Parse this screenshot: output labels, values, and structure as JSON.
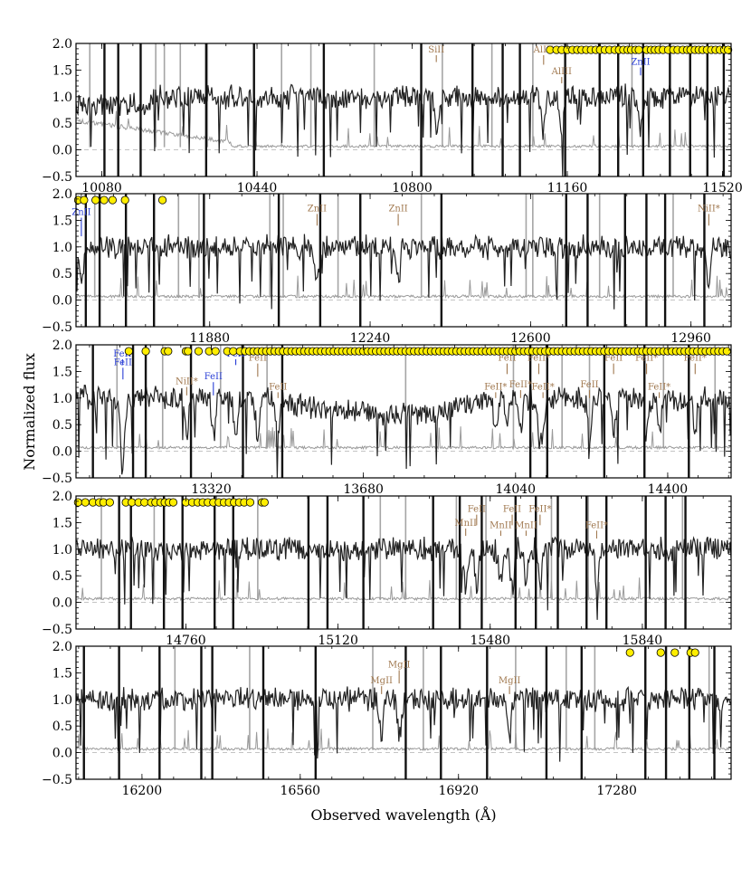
{
  "colors": {
    "flux": "#222222",
    "error": "#9a9a9a",
    "sky": "#a5a5a5",
    "telluric": "#111111",
    "low_ion": "#a0784f",
    "high_ion": "#2a3fd6",
    "dot_fill": "#ffee00",
    "zero_line": "#b0b0b0"
  },
  "chart_data": {
    "type": "line",
    "xlabel": "Observed wavelength (Å)",
    "ylabel": "Normalized flux",
    "ylim": [
      -0.5,
      2.0
    ],
    "yticks": [
      -0.5,
      0.0,
      0.5,
      1.0,
      1.5,
      2.0
    ],
    "ytick_labels": [
      "−0.5",
      "0.0",
      "0.5",
      "1.0",
      "1.5",
      "2.0"
    ],
    "grid": false,
    "series": [
      {
        "name": "",
        "role": "normalized flux"
      },
      {
        "name": "",
        "role": "error spectrum"
      }
    ],
    "panels": [
      {
        "xlim": [
          10020,
          11540
        ],
        "xticks": [
          10080,
          10440,
          10800,
          11160,
          11520
        ],
        "xtick_labels": [
          "10080",
          "10440",
          "10800",
          "11160",
          "11520"
        ],
        "telluric_lines": [
          10086,
          10118,
          10170,
          10322,
          10433,
          10595,
          10821,
          10940,
          11010,
          11050,
          11155,
          11235,
          11278,
          11336,
          11398,
          11445,
          11485,
          11523
        ],
        "sky_lines": [
          10052,
          10205,
          10225,
          10262,
          10325,
          10497,
          10565,
          10712,
          10870,
          10985,
          11080,
          11310
        ],
        "transitions": [
          {
            "label": "SiII",
            "x": 10856,
            "label_y": 1.83,
            "bottom": 1.65,
            "group": "low"
          },
          {
            "label": "AlIII",
            "x": 11105,
            "label_y": 1.83,
            "bottom": 1.6,
            "group": "low"
          },
          {
            "label": "AlIII",
            "x": 11147,
            "label_y": 1.42,
            "bottom": 1.25,
            "group": "low"
          },
          {
            "label": "ZnII",
            "x": 11330,
            "label_y": 1.6,
            "bottom": 1.4,
            "group": "high"
          }
        ],
        "dots": [
          11120,
          11135,
          11147,
          11160,
          11172,
          11183,
          11193,
          11204,
          11215,
          11226,
          11236,
          11247,
          11258,
          11270,
          11280,
          11290,
          11300,
          11308,
          11318,
          11326,
          11344,
          11354,
          11363,
          11372,
          11382,
          11394,
          11406,
          11416,
          11428,
          11438,
          11446,
          11456,
          11465,
          11474,
          11484,
          11494,
          11504,
          11514,
          11524,
          11533
        ]
      },
      {
        "xlim": [
          11580,
          13050
        ],
        "xticks": [
          11880,
          12240,
          12600,
          12960
        ],
        "xtick_labels": [
          "11880",
          "12240",
          "12600",
          "12960"
        ],
        "telluric_lines": [
          11602,
          11633,
          11692,
          11755,
          11867,
          12035,
          12128,
          12218,
          12400,
          12680,
          12728,
          12812,
          12860,
          12902,
          12990
        ],
        "sky_lines": [
          11622,
          11810,
          11856,
          12015,
          12045,
          12168,
          12355,
          12590,
          12605,
          12755,
          12920
        ],
        "transitions": [
          {
            "label": "ZnII",
            "x": 11592,
            "label_y": 1.6,
            "bottom": 1.2,
            "group": "high"
          },
          {
            "label": "ZnII",
            "x": 12121,
            "label_y": 1.67,
            "bottom": 1.4,
            "group": "low"
          },
          {
            "label": "ZnII",
            "x": 12303,
            "label_y": 1.67,
            "bottom": 1.4,
            "group": "low"
          },
          {
            "label": "NiII*",
            "x": 13000,
            "label_y": 1.67,
            "bottom": 1.4,
            "group": "low"
          }
        ],
        "dots": [
          11585,
          11598,
          11624,
          11643,
          11662,
          11690,
          11774
        ]
      },
      {
        "xlim": [
          13000,
          14550
        ],
        "xticks": [
          13320,
          13680,
          14040,
          14400
        ],
        "xtick_labels": [
          "13320",
          "13680",
          "14040",
          "14400"
        ],
        "telluric_lines": [
          13040,
          13135,
          13165,
          13272,
          13395,
          13488,
          14075,
          14115,
          14250,
          14345,
          14450
        ],
        "sky_lines": [
          13097,
          13205,
          13342,
          13452,
          13780,
          14035,
          14150,
          14215,
          14390,
          14512
        ],
        "transitions": [
          {
            "label": "FeII",
            "x": 13110,
            "label_y": 1.78,
            "bottom": 1.62,
            "group": "high"
          },
          {
            "label": "FeII",
            "x": 13111,
            "label_y": 1.62,
            "bottom": 1.35,
            "group": "high"
          },
          {
            "label": "NiII*",
            "x": 13262,
            "label_y": 1.26,
            "bottom": 1.05,
            "group": "low"
          },
          {
            "label": "FeII",
            "x": 13325,
            "label_y": 1.35,
            "bottom": 1.05,
            "group": "high"
          },
          {
            "label": "FeII",
            "x": 13378,
            "label_y": 1.78,
            "bottom": 1.62,
            "group": "high"
          },
          {
            "label": "FeII",
            "x": 13430,
            "label_y": 1.7,
            "bottom": 1.4,
            "group": "low"
          },
          {
            "label": "FeII",
            "x": 13478,
            "label_y": 1.16,
            "bottom": 1.0,
            "group": "low"
          },
          {
            "label": "FeII*",
            "x": 13993,
            "label_y": 1.16,
            "bottom": 1.0,
            "group": "low"
          },
          {
            "label": "FeII",
            "x": 14020,
            "label_y": 1.7,
            "bottom": 1.45,
            "group": "low"
          },
          {
            "label": "FeII*",
            "x": 14052,
            "label_y": 1.2,
            "bottom": 1.0,
            "group": "low"
          },
          {
            "label": "FeII*",
            "x": 14095,
            "label_y": 1.7,
            "bottom": 1.45,
            "group": "low"
          },
          {
            "label": "FeII*",
            "x": 14105,
            "label_y": 1.16,
            "bottom": 1.0,
            "group": "low"
          },
          {
            "label": "FeII",
            "x": 14215,
            "label_y": 1.2,
            "bottom": 1.0,
            "group": "low"
          },
          {
            "label": "FeII",
            "x": 14272,
            "label_y": 1.7,
            "bottom": 1.45,
            "group": "low"
          },
          {
            "label": "FeII*",
            "x": 14350,
            "label_y": 1.7,
            "bottom": 1.45,
            "group": "low"
          },
          {
            "label": "FeII*",
            "x": 14380,
            "label_y": 1.16,
            "bottom": 1.0,
            "group": "low"
          },
          {
            "label": "FeII*",
            "x": 14465,
            "label_y": 1.7,
            "bottom": 1.45,
            "group": "low"
          }
        ],
        "dots": [
          13125,
          13165,
          13210,
          13218,
          13260,
          13265,
          13290,
          13315,
          13330,
          13358,
          13372,
          13388,
          13400,
          13410,
          13420,
          13430,
          13440,
          13450,
          13460,
          13470,
          13480,
          13490,
          13500,
          13510,
          13520,
          13530,
          13540,
          13550,
          13560,
          13570,
          13580,
          13590,
          13600,
          13610,
          13620,
          13630,
          13640,
          13650,
          13660,
          13670,
          13680,
          13690,
          13700,
          13710,
          13720,
          13730,
          13740,
          13750,
          13760,
          13770,
          13780,
          13790,
          13800,
          13810,
          13820,
          13830,
          13840,
          13850,
          13860,
          13870,
          13880,
          13890,
          13900,
          13910,
          13920,
          13930,
          13940,
          13950,
          13960,
          13970,
          13980,
          13990,
          14000,
          14010,
          14020,
          14030,
          14040,
          14050,
          14060,
          14070,
          14080,
          14090,
          14100,
          14110,
          14120,
          14130,
          14140,
          14150,
          14160,
          14170,
          14180,
          14190,
          14200,
          14210,
          14220,
          14230,
          14240,
          14250,
          14260,
          14270,
          14280,
          14290,
          14300,
          14310,
          14320,
          14330,
          14340,
          14350,
          14360,
          14370,
          14380,
          14390,
          14400,
          14410,
          14420,
          14430,
          14440,
          14450,
          14460,
          14470,
          14480,
          14490,
          14500,
          14510,
          14520,
          14530,
          14540
        ]
      },
      {
        "xlim": [
          14500,
          16050
        ],
        "xticks": [
          14760,
          15120,
          15480,
          15840
        ],
        "xtick_labels": [
          "14760",
          "15120",
          "15480",
          "15840"
        ],
        "telluric_lines": [
          14602,
          14630,
          14708,
          14752,
          14828,
          14872,
          15050,
          15095,
          15180,
          15345,
          15408,
          15460,
          15540,
          15588,
          15640,
          15708,
          15755,
          15848,
          15895,
          15942
        ],
        "sky_lines": [
          14560,
          14685,
          14930,
          15220,
          15280,
          15400,
          15470,
          15625,
          15712,
          15935
        ],
        "transitions": [
          {
            "label": "MnII",
            "x": 15422,
            "label_y": 1.44,
            "bottom": 1.25,
            "group": "low"
          },
          {
            "label": "FeII",
            "x": 15448,
            "label_y": 1.7,
            "bottom": 1.45,
            "group": "low"
          },
          {
            "label": "MnII",
            "x": 15505,
            "label_y": 1.4,
            "bottom": 1.25,
            "group": "low"
          },
          {
            "label": "FeII",
            "x": 15532,
            "label_y": 1.7,
            "bottom": 1.45,
            "group": "low"
          },
          {
            "label": "MnII",
            "x": 15565,
            "label_y": 1.4,
            "bottom": 1.25,
            "group": "low"
          },
          {
            "label": "FeII*",
            "x": 15598,
            "label_y": 1.7,
            "bottom": 1.45,
            "group": "low"
          },
          {
            "label": "FeII*",
            "x": 15732,
            "label_y": 1.4,
            "bottom": 1.2,
            "group": "low"
          }
        ],
        "dots": [
          14505,
          14522,
          14540,
          14555,
          14565,
          14580,
          14618,
          14632,
          14648,
          14662,
          14678,
          14688,
          14700,
          14710,
          14720,
          14730,
          14760,
          14775,
          14788,
          14800,
          14812,
          14825,
          14838,
          14850,
          14862,
          14874,
          14886,
          14898,
          14912,
          14940,
          14946
        ]
      },
      {
        "xlim": [
          16050,
          17540
        ],
        "xticks": [
          16200,
          16560,
          16920,
          17280
        ],
        "xtick_labels": [
          "16200",
          "16560",
          "16920",
          "17280"
        ],
        "telluric_lines": [
          16068,
          16148,
          16240,
          16335,
          16360,
          16476,
          16595,
          16800,
          16880,
          16985,
          17120,
          17200,
          17345,
          17392,
          17445,
          17502
        ],
        "sky_lines": [
          16275,
          16445,
          16725,
          16840,
          17050,
          17165,
          17230,
          17490
        ],
        "transitions": [
          {
            "label": "MgII",
            "x": 16745,
            "label_y": 1.3,
            "bottom": 1.1,
            "group": "low"
          },
          {
            "label": "MgII",
            "x": 16785,
            "label_y": 1.6,
            "bottom": 1.3,
            "group": "low"
          },
          {
            "label": "MgII",
            "x": 17036,
            "label_y": 1.3,
            "bottom": 1.1,
            "group": "low"
          }
        ],
        "dots": [
          17310,
          17380,
          17412,
          17448,
          17458
        ]
      }
    ]
  }
}
